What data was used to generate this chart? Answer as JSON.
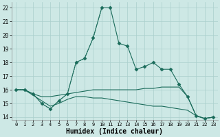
{
  "xlabel": "Humidex (Indice chaleur)",
  "bg_color": "#cde8e5",
  "grid_color": "#aacfcc",
  "line_color": "#1a6b5a",
  "xlim": [
    -0.5,
    23.5
  ],
  "ylim": [
    13.8,
    22.4
  ],
  "yticks": [
    14,
    15,
    16,
    17,
    18,
    19,
    20,
    21,
    22
  ],
  "xticks": [
    0,
    1,
    2,
    3,
    4,
    5,
    6,
    7,
    8,
    9,
    10,
    11,
    12,
    13,
    14,
    15,
    16,
    17,
    18,
    19,
    20,
    21,
    22,
    23
  ],
  "series_main": {
    "x": [
      0,
      1,
      2,
      3,
      4,
      5,
      6,
      7,
      8,
      9,
      10,
      11,
      12,
      13,
      14,
      15,
      16,
      17,
      18,
      19,
      20,
      21,
      22,
      23
    ],
    "y": [
      16.0,
      16.0,
      15.7,
      15.0,
      14.6,
      15.2,
      15.7,
      18.0,
      18.3,
      19.8,
      22.0,
      22.0,
      19.4,
      19.2,
      17.5,
      17.7,
      18.0,
      17.5,
      17.5,
      16.4,
      15.5,
      14.1,
      13.9,
      14.0
    ]
  },
  "series_dotted": {
    "x": [
      0,
      1,
      2,
      3,
      4,
      5,
      6,
      7,
      8,
      9,
      10
    ],
    "y": [
      16.0,
      16.0,
      15.7,
      15.0,
      14.6,
      15.2,
      15.7,
      18.0,
      18.3,
      19.8,
      22.0
    ]
  },
  "series_flat1": {
    "x": [
      0,
      1,
      2,
      3,
      4,
      5,
      6,
      7,
      8,
      9,
      10,
      11,
      12,
      13,
      14,
      15,
      16,
      17,
      18,
      19,
      20,
      21,
      22,
      23
    ],
    "y": [
      16.0,
      16.0,
      15.7,
      15.5,
      15.5,
      15.6,
      15.7,
      15.8,
      15.9,
      16.0,
      16.0,
      16.0,
      16.0,
      16.0,
      16.0,
      16.1,
      16.1,
      16.2,
      16.2,
      16.2,
      15.5,
      14.1,
      13.9,
      14.0
    ]
  },
  "series_flat2": {
    "x": [
      0,
      1,
      2,
      3,
      4,
      5,
      6,
      7,
      8,
      9,
      10,
      11,
      12,
      13,
      14,
      15,
      16,
      17,
      18,
      19,
      20,
      21,
      22,
      23
    ],
    "y": [
      16.0,
      16.0,
      15.6,
      15.2,
      14.8,
      15.0,
      15.3,
      15.5,
      15.5,
      15.4,
      15.4,
      15.3,
      15.2,
      15.1,
      15.0,
      14.9,
      14.8,
      14.8,
      14.7,
      14.6,
      14.5,
      14.1,
      13.9,
      14.0
    ]
  },
  "xlabel_fontsize": 7,
  "tick_fontsize": 5.5
}
